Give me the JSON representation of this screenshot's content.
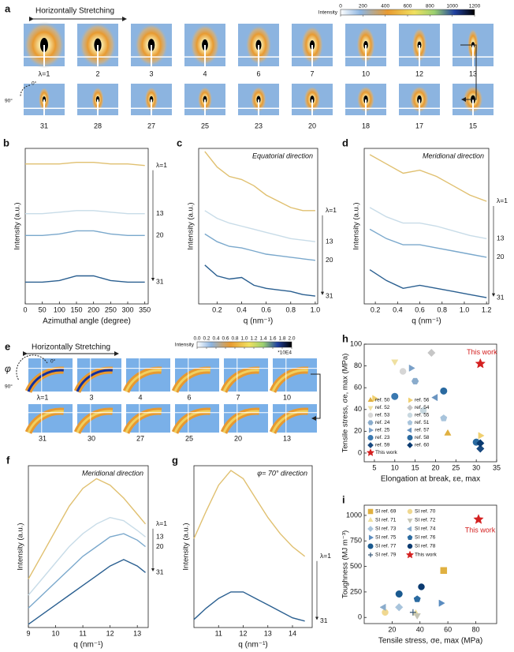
{
  "panel_a": {
    "panel": "a",
    "stretch_label": "Horizontally Stretching",
    "angle_labels": [
      "0°",
      "90°"
    ],
    "colorbar": {
      "label": "Intensity",
      "lim": [
        0,
        1200
      ],
      "ticks": [
        0,
        200,
        400,
        600,
        800,
        1000,
        1200
      ]
    },
    "row1": [
      "λ=1",
      "2",
      "3",
      "4",
      "6",
      "7",
      "10",
      "12",
      "13"
    ],
    "row2": [
      "31",
      "28",
      "27",
      "25",
      "23",
      "20",
      "18",
      "17",
      "15"
    ]
  },
  "panel_e": {
    "panel": "e",
    "stretch_label": "Horizontally Stretching",
    "angle_labels": [
      "φ",
      "0°",
      "90°"
    ],
    "colorbar": {
      "label": "Intensity",
      "lim": [
        0,
        2
      ],
      "multiplier": "*10E4",
      "ticks": [
        {
          "value": 0,
          "label": "0.0"
        },
        0.2,
        0.4,
        0.6,
        0.8,
        {
          "value": 1,
          "label": "1.0"
        },
        1.2,
        1.4,
        1.6,
        1.8,
        {
          "value": 2,
          "label": "2.0"
        }
      ]
    },
    "row1": [
      "λ=1",
      "3",
      "4",
      "6",
      "7",
      "10"
    ],
    "row2": [
      "31",
      "30",
      "27",
      "25",
      "20",
      "13"
    ]
  },
  "chart_data": [
    {
      "type": "line",
      "panel": "b",
      "x_label": "Azimuthal angle (degree)",
      "y_label": "Intensity (a.u.)",
      "x": [
        0,
        50,
        100,
        150,
        200,
        250,
        300,
        350
      ],
      "xlim": [
        0,
        360
      ],
      "xticks": [
        0,
        50,
        100,
        150,
        200,
        250,
        300,
        350
      ],
      "ylim": [
        0,
        100
      ],
      "series": [
        {
          "name": "λ=1",
          "color": "#e0c070",
          "values": [
            90,
            90,
            90,
            91,
            91,
            90,
            90,
            89
          ]
        },
        {
          "name": "13",
          "color": "#c8dce8",
          "values": [
            58,
            58,
            59,
            60,
            60,
            59,
            58,
            58
          ]
        },
        {
          "name": "20",
          "color": "#7aa8cc",
          "values": [
            44,
            44,
            45,
            47,
            47,
            45,
            44,
            44
          ]
        },
        {
          "name": "31",
          "color": "#2a5f90",
          "values": [
            14,
            14,
            15,
            18,
            18,
            15,
            14,
            14
          ]
        }
      ]
    },
    {
      "type": "line",
      "panel": "c",
      "annotation": "Equatorial direction",
      "x_label": "q (nm⁻¹)",
      "y_label": "Intensity (a.u.)",
      "x": [
        0.1,
        0.2,
        0.3,
        0.4,
        0.5,
        0.6,
        0.7,
        0.8,
        0.9,
        1.0
      ],
      "xlim": [
        0.05,
        1.02
      ],
      "xticks": [
        0.2,
        0.4,
        0.6,
        0.8,
        {
          "value": 1,
          "label": "1.0"
        }
      ],
      "ylim": [
        0,
        100
      ],
      "series": [
        {
          "name": "λ=1",
          "color": "#e0c070",
          "values": [
            98,
            88,
            82,
            80,
            76,
            70,
            66,
            62,
            60,
            60
          ]
        },
        {
          "name": "13",
          "color": "#c8dce8",
          "values": [
            60,
            55,
            52,
            50,
            48,
            46,
            44,
            42,
            41,
            40
          ]
        },
        {
          "name": "20",
          "color": "#7aa8cc",
          "values": [
            45,
            40,
            37,
            36,
            34,
            32,
            31,
            30,
            29,
            28
          ]
        },
        {
          "name": "31",
          "color": "#2a5f90",
          "values": [
            25,
            18,
            16,
            17,
            12,
            10,
            9,
            8,
            6,
            5
          ]
        }
      ]
    },
    {
      "type": "line",
      "panel": "d",
      "annotation": "Meridional direction",
      "x_label": "q (nm⁻¹)",
      "y_label": "Intensity (a.u.)",
      "x": [
        0.15,
        0.3,
        0.45,
        0.6,
        0.75,
        0.9,
        1.05,
        1.2
      ],
      "xlim": [
        0.1,
        1.22
      ],
      "xticks": [
        0.2,
        0.4,
        0.6,
        0.8,
        {
          "value": 1,
          "label": "1.0"
        },
        1.2
      ],
      "ylim": [
        0,
        100
      ],
      "series": [
        {
          "name": "λ=1",
          "color": "#e0c070",
          "values": [
            96,
            90,
            84,
            86,
            82,
            76,
            70,
            66
          ]
        },
        {
          "name": "13",
          "color": "#c8dce8",
          "values": [
            62,
            56,
            52,
            52,
            50,
            47,
            44,
            42
          ]
        },
        {
          "name": "20",
          "color": "#7aa8cc",
          "values": [
            48,
            42,
            38,
            38,
            36,
            34,
            32,
            30
          ]
        },
        {
          "name": "31",
          "color": "#2a5f90",
          "values": [
            22,
            15,
            10,
            12,
            10,
            8,
            6,
            4
          ]
        }
      ]
    },
    {
      "type": "line",
      "panel": "f",
      "annotation": "Meridional direction",
      "x_label": "q (nm⁻¹)",
      "y_label": "Intensity (a.u.)",
      "x": [
        9,
        9.5,
        10,
        10.5,
        11,
        11.5,
        12,
        12.5,
        13,
        13.3
      ],
      "xlim": [
        9,
        13.4
      ],
      "xticks": [
        9,
        10,
        11,
        12,
        13
      ],
      "ylim": [
        0,
        100
      ],
      "series": [
        {
          "name": "λ=1",
          "color": "#e0c070",
          "values": [
            30,
            45,
            60,
            75,
            86,
            92,
            88,
            80,
            70,
            64
          ]
        },
        {
          "name": "13",
          "color": "#c8dce8",
          "values": [
            20,
            30,
            40,
            50,
            58,
            64,
            68,
            66,
            60,
            56
          ]
        },
        {
          "name": "20",
          "color": "#7aa8cc",
          "values": [
            12,
            20,
            28,
            36,
            44,
            50,
            56,
            58,
            54,
            50
          ]
        },
        {
          "name": "31",
          "color": "#2a5f90",
          "values": [
            2,
            8,
            14,
            20,
            26,
            32,
            38,
            42,
            38,
            34
          ]
        }
      ]
    },
    {
      "type": "line",
      "panel": "g",
      "annotation": "φ= 70° direction",
      "x_label": "q (nm⁻¹)",
      "y_label": "Intensity (a.u.)",
      "x": [
        10,
        10.5,
        11,
        11.5,
        12,
        12.5,
        13,
        13.5,
        14,
        14.5
      ],
      "xlim": [
        10,
        14.8
      ],
      "xticks": [
        11,
        12,
        13,
        14
      ],
      "ylim": [
        0,
        100
      ],
      "series": [
        {
          "name": "λ=1",
          "color": "#e0c070",
          "values": [
            55,
            72,
            88,
            97,
            92,
            80,
            68,
            58,
            50,
            44
          ]
        },
        {
          "name": "31",
          "color": "#2a5f90",
          "values": [
            5,
            12,
            18,
            22,
            22,
            18,
            14,
            10,
            6,
            4
          ]
        }
      ]
    },
    {
      "type": "scatter",
      "panel": "h",
      "annotation": "This work",
      "x_label": "Elongation at break, εe, max",
      "y_label": "Tensile stress, σe, max (MPa)",
      "xlim": [
        2.5,
        35
      ],
      "xticks": [
        5,
        10,
        15,
        20,
        25,
        30,
        35
      ],
      "ylim": [
        -8,
        100
      ],
      "yticks": [
        0,
        20,
        40,
        60,
        80,
        100
      ],
      "series": [
        {
          "name": "ref. 50",
          "color": "#e0b040",
          "marker": "triangle-up",
          "x": [
            23
          ],
          "values": [
            18
          ]
        },
        {
          "name": "ref. 52",
          "color": "#efe0a0",
          "marker": "triangle-down",
          "x": [
            10
          ],
          "values": [
            84
          ]
        },
        {
          "name": "ref. 53",
          "color": "#d6d6d6",
          "marker": "circle",
          "x": [
            12
          ],
          "values": [
            75
          ]
        },
        {
          "name": "ref. 24",
          "color": "#8aaccc",
          "marker": "hexagon",
          "x": [
            15
          ],
          "values": [
            66
          ]
        },
        {
          "name": "ref. 25",
          "color": "#7aa0c8",
          "marker": "triangle-right",
          "x": [
            14
          ],
          "values": [
            78
          ]
        },
        {
          "name": "ref. 23",
          "color": "#3a78b0",
          "marker": "half-circle",
          "x": [
            10
          ],
          "values": [
            52
          ]
        },
        {
          "name": "ref. 59",
          "color": "#1a4a80",
          "marker": "diamond",
          "x": [
            31
          ],
          "values": [
            4
          ]
        },
        {
          "name": "ref. 56",
          "color": "#f0d070",
          "marker": "triangle-right",
          "x": [
            5,
            31
          ],
          "values": [
            50,
            16
          ]
        },
        {
          "name": "ref. 54",
          "color": "#c6c6c6",
          "marker": "diamond",
          "x": [
            19
          ],
          "values": [
            92
          ]
        },
        {
          "name": "ref. 55",
          "color": "#c8d8e0",
          "marker": "circle",
          "x": [
            17
          ],
          "values": [
            39
          ]
        },
        {
          "name": "ref. 51",
          "color": "#a8c4dc",
          "marker": "pentagon",
          "x": [
            22
          ],
          "values": [
            32
          ]
        },
        {
          "name": "ref. 57",
          "color": "#6a94c0",
          "marker": "triangle-left",
          "x": [
            20
          ],
          "values": [
            51
          ]
        },
        {
          "name": "ref. 58",
          "color": "#2a6aa0",
          "marker": "half-circle",
          "x": [
            22,
            30
          ],
          "values": [
            57,
            10
          ]
        },
        {
          "name": "ref. 60",
          "color": "#0a3a70",
          "marker": "diamond",
          "x": [
            31
          ],
          "values": [
            9
          ]
        },
        {
          "name": "This work",
          "color": "#d42020",
          "marker": "star",
          "x": [
            31
          ],
          "values": [
            82
          ]
        }
      ]
    },
    {
      "type": "scatter",
      "panel": "i",
      "annotation": "This work",
      "x_label": "Tensile stress, σe, max (MPa)",
      "y_label": "Toughness (MJ m⁻³)",
      "xlim": [
        0,
        95
      ],
      "xticks": [
        20,
        40,
        60,
        80
      ],
      "ylim": [
        -60,
        1100
      ],
      "yticks": [
        0,
        250,
        500,
        750,
        1000
      ],
      "series": [
        {
          "name": "SI ref. 69",
          "color": "#e0b040",
          "marker": "square",
          "x": [
            57
          ],
          "values": [
            460
          ]
        },
        {
          "name": "SI ref. 70",
          "color": "#f0d890",
          "marker": "circle",
          "x": [
            15
          ],
          "values": [
            50
          ]
        },
        {
          "name": "SI ref. 71",
          "color": "#efe0a0",
          "marker": "triangle-up",
          "x": [
            37
          ],
          "values": [
            40
          ]
        },
        {
          "name": "SI ref. 72",
          "color": "#c6c6b6",
          "marker": "triangle-down",
          "x": [
            38
          ],
          "values": [
            20
          ]
        },
        {
          "name": "SI ref. 73",
          "color": "#a8c4dc",
          "marker": "diamond",
          "x": [
            25
          ],
          "values": [
            100
          ]
        },
        {
          "name": "SI ref. 74",
          "color": "#8aaccc",
          "marker": "triangle-left",
          "x": [
            14
          ],
          "values": [
            100
          ]
        },
        {
          "name": "SI ref. 75",
          "color": "#5a8cc0",
          "marker": "triangle-right",
          "x": [
            55
          ],
          "values": [
            140
          ]
        },
        {
          "name": "SI ref. 76",
          "color": "#2a6aa0",
          "marker": "pentagon",
          "x": [
            38
          ],
          "values": [
            180
          ]
        },
        {
          "name": "SI ref. 77",
          "color": "#1a5a90",
          "marker": "half-circle",
          "x": [
            25
          ],
          "values": [
            230
          ]
        },
        {
          "name": "SI ref. 78",
          "color": "#0a3a70",
          "marker": "circle",
          "x": [
            41
          ],
          "values": [
            300
          ]
        },
        {
          "name": "SI ref. 79",
          "color": "#3a5a7a",
          "marker": "plus",
          "x": [
            35
          ],
          "values": [
            50
          ]
        },
        {
          "name": "This work",
          "color": "#d42020",
          "marker": "star",
          "x": [
            82
          ],
          "values": [
            960
          ]
        }
      ]
    }
  ]
}
